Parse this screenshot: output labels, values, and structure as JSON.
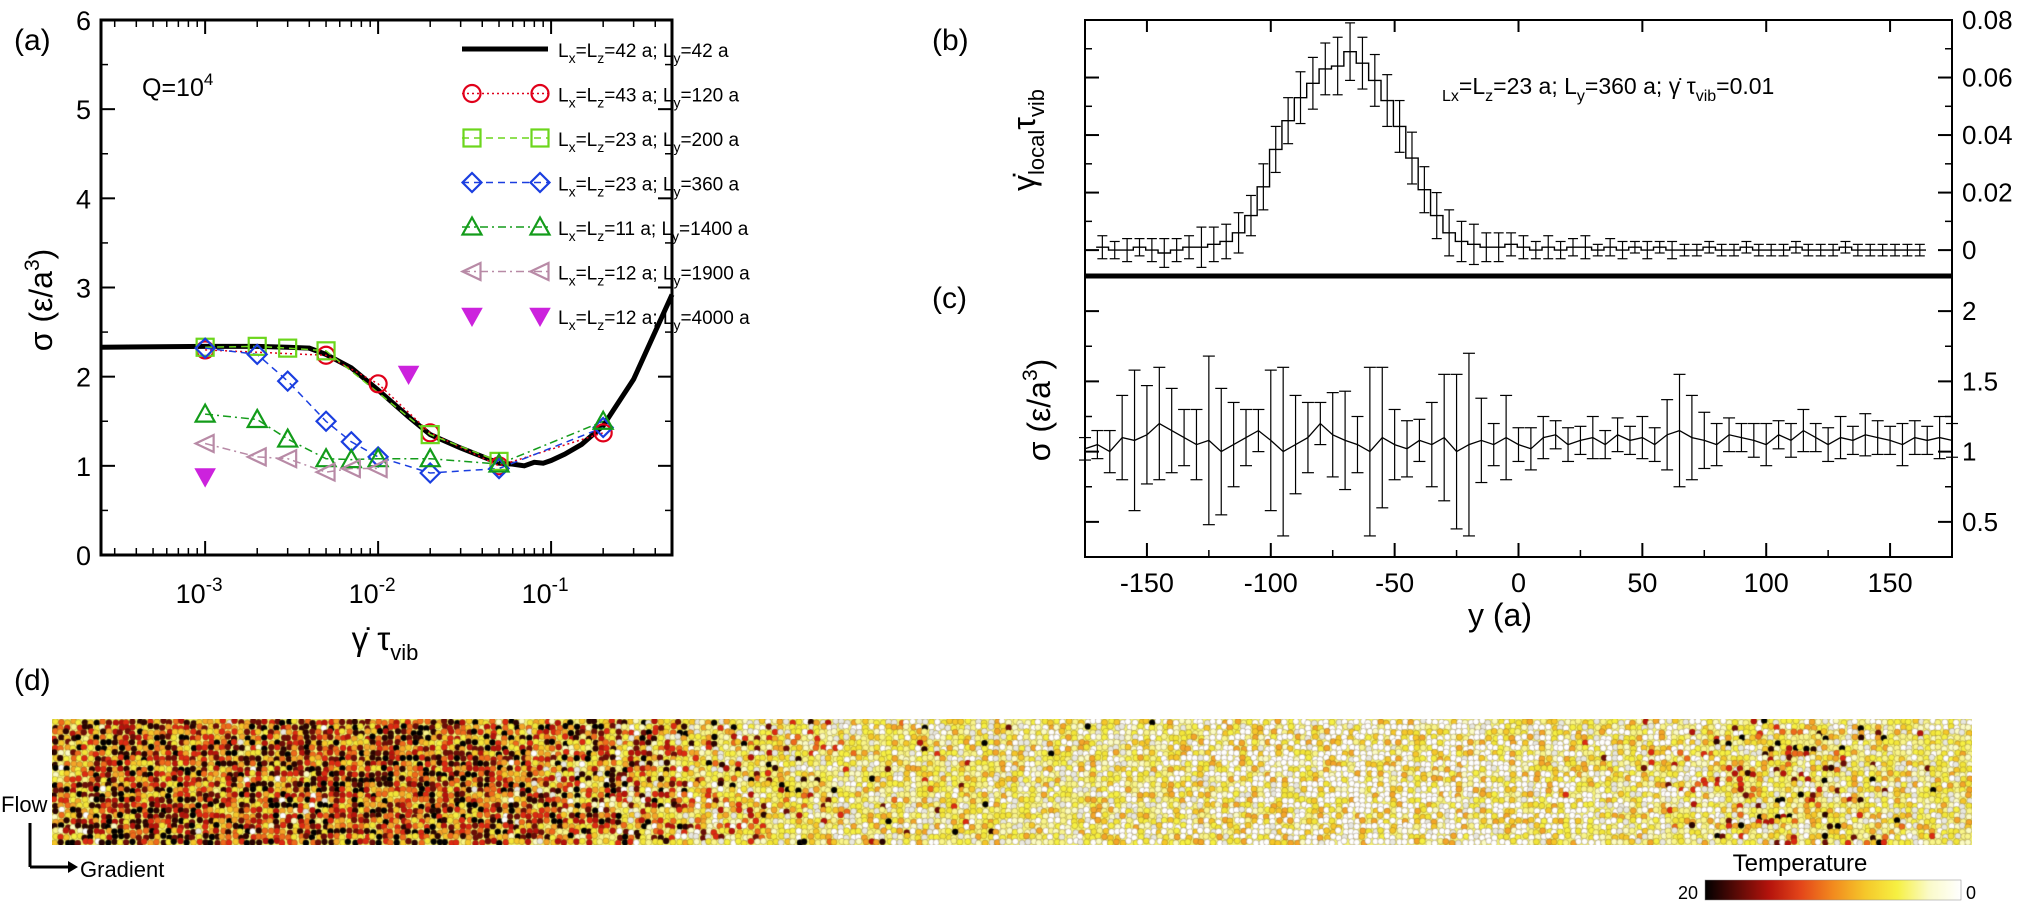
{
  "panels": {
    "a": "(a)",
    "b": "(b)",
    "c": "(c)",
    "d": "(d)"
  },
  "annotations": {
    "q_base": "Q=10",
    "q_exp": "4",
    "b_params": [
      {
        "t": "L",
        "s": "sub"
      },
      {
        "t": "x",
        "s": "sub"
      },
      {
        "t": "=L",
        "s": ""
      },
      {
        "t": "z",
        "s": "sub"
      },
      {
        "t": "=23 a; L",
        "s": ""
      },
      {
        "t": "y",
        "s": "sub"
      },
      {
        "t": "=360 a; ",
        "s": ""
      },
      {
        "t": "γ̇",
        "s": ""
      },
      {
        "t": " τ",
        "s": ""
      },
      {
        "t": "vib",
        "s": "sub"
      },
      {
        "t": "=0.01",
        "s": ""
      }
    ]
  },
  "colorbar": {
    "title": "Temperature",
    "min_label": "20",
    "max_label": "0",
    "stops": [
      "#000000",
      "#5a0a06",
      "#b4130c",
      "#e4461a",
      "#f28a1e",
      "#f5c72a",
      "#f6f042",
      "#fafac8",
      "#ffffff"
    ]
  },
  "axes_labels_d": {
    "flow": "Flow",
    "gradient": "Gradient"
  },
  "chart_data": [
    {
      "id": "a",
      "type": "line",
      "xscale": "log",
      "xlim": [
        0.00025,
        0.5
      ],
      "ylim": [
        0,
        6
      ],
      "yticks": [
        0,
        1,
        2,
        3,
        4,
        5,
        6
      ],
      "xticks": [
        {
          "value": 0.001,
          "base": "10",
          "exp": "-3"
        },
        {
          "value": 0.01,
          "base": "10",
          "exp": "-2"
        },
        {
          "value": 0.1,
          "base": "10",
          "exp": "-1"
        }
      ],
      "xlabel": {
        "a": "γ̇",
        "b": " τ",
        "sub": "vib"
      },
      "ylabel": {
        "a": "σ (ε/a",
        "sup": "3",
        "b": ")"
      },
      "series": [
        {
          "name": "L_x=L_z=42 a; L_y=42 a",
          "legend": [
            "L",
            "x",
            "=L",
            "z",
            "=42 a; L",
            "y",
            "=42 a"
          ],
          "marker": "none",
          "color": "#000000",
          "line": "solid",
          "x": [
            0.00025,
            0.001,
            0.002,
            0.003,
            0.004,
            0.005,
            0.007,
            0.01,
            0.015,
            0.02,
            0.03,
            0.05,
            0.06,
            0.07,
            0.08,
            0.09,
            0.1,
            0.12,
            0.15,
            0.2,
            0.3,
            0.5
          ],
          "y": [
            2.33,
            2.34,
            2.34,
            2.33,
            2.32,
            2.25,
            2.1,
            1.85,
            1.55,
            1.35,
            1.2,
            1.03,
            1.02,
            1.0,
            1.04,
            1.03,
            1.06,
            1.13,
            1.24,
            1.45,
            1.97,
            2.92
          ]
        },
        {
          "name": "L_x=L_z=43 a; L_y=120 a",
          "legend": [
            "L",
            "x",
            "=L",
            "z",
            "=43 a; L",
            "y",
            "=120 a"
          ],
          "marker": "circle",
          "color": "#e0001a",
          "line": "dotted",
          "x": [
            0.001,
            0.005,
            0.01,
            0.02,
            0.05,
            0.2
          ],
          "y": [
            2.3,
            2.24,
            1.92,
            1.37,
            1.0,
            1.37
          ]
        },
        {
          "name": "L_x=L_z=23 a; L_y=200 a",
          "legend": [
            "L",
            "x",
            "=L",
            "z",
            "=23 a; L",
            "y",
            "=200 a"
          ],
          "marker": "square",
          "color": "#6cd61c",
          "line": "dashed",
          "x": [
            0.001,
            0.002,
            0.003,
            0.005,
            0.02,
            0.05
          ],
          "y": [
            2.33,
            2.34,
            2.32,
            2.29,
            1.35,
            1.05
          ]
        },
        {
          "name": "L_x=L_z=23 a; L_y=360 a",
          "legend": [
            "L",
            "x",
            "=L",
            "z",
            "=23 a; L",
            "y",
            "=360 a"
          ],
          "marker": "diamond",
          "color": "#1a3ee0",
          "line": "dashed",
          "x": [
            0.001,
            0.002,
            0.003,
            0.005,
            0.007,
            0.01,
            0.02,
            0.05,
            0.2
          ],
          "y": [
            2.32,
            2.25,
            1.95,
            1.5,
            1.27,
            1.1,
            0.92,
            0.97,
            1.43
          ]
        },
        {
          "name": "L_x=L_z=11 a; L_y=1400 a",
          "legend": [
            "L",
            "x",
            "=L",
            "z",
            "=11 a; L",
            "y",
            "=1400 a"
          ],
          "marker": "triangle-up",
          "color": "#139c1a",
          "line": "dashdot",
          "x": [
            0.001,
            0.002,
            0.003,
            0.005,
            0.007,
            0.01,
            0.02,
            0.05,
            0.2
          ],
          "y": [
            1.58,
            1.52,
            1.3,
            1.08,
            1.07,
            1.08,
            1.08,
            1.02,
            1.5
          ]
        },
        {
          "name": "L_x=L_z=12 a; L_y=1900 a",
          "legend": [
            "L",
            "x",
            "=L",
            "z",
            "=12 a; L",
            "y",
            "=1900 a"
          ],
          "marker": "triangle-left",
          "color": "#b88aa6",
          "line": "dashdot",
          "x": [
            0.001,
            0.002,
            0.003,
            0.005,
            0.007,
            0.01
          ],
          "y": [
            1.25,
            1.1,
            1.08,
            0.93,
            0.97,
            0.97
          ]
        },
        {
          "name": "L_x=L_z=12 a; L_y=4000 a",
          "legend": [
            "L",
            "x",
            "=L",
            "z",
            "=12 a; L",
            "y",
            "=4000 a"
          ],
          "marker": "triangle-down-filled",
          "color": "#cc22dd",
          "line": "none",
          "x": [
            0.001,
            0.015
          ],
          "y": [
            0.88,
            2.03
          ]
        }
      ]
    },
    {
      "id": "b",
      "type": "line",
      "xlim": [
        -175,
        175
      ],
      "ylim": [
        -0.009,
        0.08
      ],
      "yticks": [
        0,
        0.02,
        0.04,
        0.06,
        0.08
      ],
      "ylabel": {
        "a": "γ̇",
        "sub": "local",
        "b": "τ",
        "sub2": "vib"
      },
      "x": [
        -168,
        -163,
        -158,
        -153,
        -148,
        -143,
        -138,
        -133,
        -128,
        -123,
        -118,
        -113,
        -108,
        -103,
        -98,
        -93,
        -88,
        -83,
        -78,
        -73,
        -68,
        -63,
        -58,
        -53,
        -48,
        -43,
        -38,
        -33,
        -28,
        -23,
        -18,
        -13,
        -8,
        -3,
        2,
        7,
        12,
        17,
        22,
        27,
        32,
        37,
        42,
        47,
        52,
        57,
        62,
        67,
        72,
        77,
        82,
        87,
        92,
        97,
        102,
        107,
        112,
        117,
        122,
        127,
        132,
        137,
        142,
        147,
        152,
        157,
        162
      ],
      "y": [
        0.001,
        0.0,
        0.0,
        0.001,
        0.0,
        -0.001,
        0.0,
        0.001,
        0.001,
        0.002,
        0.003,
        0.006,
        0.012,
        0.022,
        0.035,
        0.045,
        0.053,
        0.058,
        0.063,
        0.064,
        0.069,
        0.065,
        0.059,
        0.052,
        0.043,
        0.032,
        0.021,
        0.012,
        0.006,
        0.003,
        0.002,
        0.001,
        0.001,
        0.002,
        0.001,
        0.0,
        0.001,
        0.0,
        0.001,
        0.001,
        0.0,
        0.001,
        0.0,
        0.001,
        0.0,
        0.001,
        0.0,
        0.0,
        0.0,
        0.001,
        0.0,
        0.0,
        0.001,
        0.0,
        0.0,
        0.0,
        0.001,
        0.0,
        0.0,
        0.0,
        0.001,
        0.0,
        0.0,
        0.0,
        0.0,
        0.0,
        0.0
      ],
      "err": [
        0.004,
        0.003,
        0.004,
        0.003,
        0.004,
        0.005,
        0.004,
        0.004,
        0.007,
        0.006,
        0.006,
        0.007,
        0.007,
        0.008,
        0.008,
        0.008,
        0.009,
        0.009,
        0.009,
        0.01,
        0.01,
        0.009,
        0.009,
        0.009,
        0.009,
        0.009,
        0.008,
        0.008,
        0.008,
        0.007,
        0.007,
        0.005,
        0.005,
        0.004,
        0.004,
        0.003,
        0.004,
        0.003,
        0.003,
        0.004,
        0.002,
        0.003,
        0.003,
        0.002,
        0.003,
        0.002,
        0.003,
        0.002,
        0.002,
        0.002,
        0.002,
        0.002,
        0.002,
        0.002,
        0.002,
        0.002,
        0.002,
        0.002,
        0.002,
        0.002,
        0.002,
        0.002,
        0.002,
        0.002,
        0.002,
        0.002,
        0.002
      ]
    },
    {
      "id": "c",
      "type": "line",
      "xlim": [
        -175,
        175
      ],
      "ylim": [
        0.25,
        2.25
      ],
      "yticks": [
        0.5,
        1,
        1.5,
        2
      ],
      "xticks": [
        -150,
        -100,
        -50,
        0,
        50,
        100,
        150
      ],
      "xlabel": "y (a)",
      "ylabel": {
        "a": "σ (ε/a",
        "sup": "3",
        "b": ")"
      },
      "x": [
        -175,
        -170,
        -165,
        -160,
        -155,
        -150,
        -145,
        -140,
        -135,
        -130,
        -125,
        -120,
        -115,
        -110,
        -105,
        -100,
        -95,
        -90,
        -85,
        -80,
        -75,
        -70,
        -65,
        -60,
        -55,
        -50,
        -45,
        -40,
        -35,
        -30,
        -25,
        -20,
        -15,
        -10,
        -5,
        0,
        5,
        10,
        15,
        20,
        25,
        30,
        35,
        40,
        45,
        50,
        55,
        60,
        65,
        70,
        75,
        80,
        85,
        90,
        95,
        100,
        105,
        110,
        115,
        120,
        125,
        130,
        135,
        140,
        145,
        150,
        155,
        160,
        165,
        170,
        175
      ],
      "y": [
        1.02,
        1.05,
        1.0,
        1.1,
        1.08,
        1.12,
        1.2,
        1.15,
        1.1,
        1.05,
        1.08,
        1.0,
        1.05,
        1.1,
        1.15,
        1.08,
        1.0,
        1.05,
        1.1,
        1.2,
        1.12,
        1.08,
        1.05,
        1.0,
        1.1,
        1.05,
        1.02,
        1.08,
        1.05,
        1.1,
        1.0,
        1.05,
        1.08,
        1.05,
        1.1,
        1.05,
        1.02,
        1.1,
        1.12,
        1.05,
        1.08,
        1.1,
        1.05,
        1.12,
        1.08,
        1.1,
        1.05,
        1.12,
        1.15,
        1.1,
        1.08,
        1.05,
        1.12,
        1.1,
        1.08,
        1.05,
        1.12,
        1.08,
        1.15,
        1.1,
        1.05,
        1.1,
        1.08,
        1.12,
        1.1,
        1.08,
        1.05,
        1.1,
        1.08,
        1.1,
        1.08
      ],
      "err": [
        0.08,
        0.1,
        0.15,
        0.3,
        0.5,
        0.35,
        0.4,
        0.3,
        0.2,
        0.25,
        0.6,
        0.45,
        0.3,
        0.2,
        0.15,
        0.5,
        0.6,
        0.35,
        0.25,
        0.15,
        0.3,
        0.35,
        0.2,
        0.6,
        0.5,
        0.25,
        0.2,
        0.15,
        0.3,
        0.45,
        0.55,
        0.65,
        0.3,
        0.15,
        0.3,
        0.12,
        0.15,
        0.15,
        0.1,
        0.12,
        0.1,
        0.15,
        0.1,
        0.12,
        0.1,
        0.15,
        0.12,
        0.25,
        0.4,
        0.3,
        0.2,
        0.15,
        0.12,
        0.1,
        0.12,
        0.15,
        0.1,
        0.12,
        0.15,
        0.1,
        0.12,
        0.15,
        0.1,
        0.15,
        0.12,
        0.1,
        0.15,
        0.12,
        0.1,
        0.15,
        0.12
      ]
    }
  ]
}
